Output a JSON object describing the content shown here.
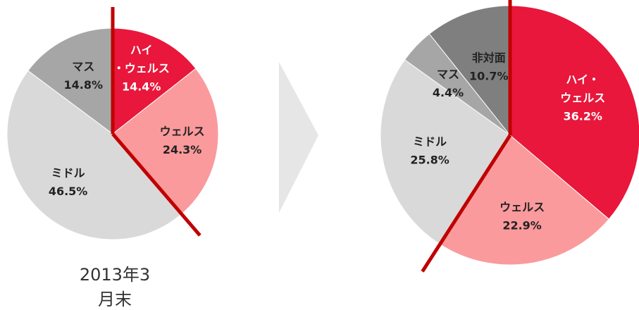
{
  "chart_data": [
    {
      "type": "pie",
      "caption": "2013年3月末",
      "slices": [
        {
          "name_lines": [
            "ハイ",
            "・ウェルス"
          ],
          "value": 14.4,
          "value_text": "14.4%",
          "color": "#e8173b",
          "label_color": "#ffffff"
        },
        {
          "name_lines": [
            "ウェルス"
          ],
          "value": 24.3,
          "value_text": "24.3%",
          "color": "#fa9a9c",
          "label_color": "#222222"
        },
        {
          "name_lines": [
            "ミドル"
          ],
          "value": 46.5,
          "value_text": "46.5%",
          "color": "#d9d9d9",
          "label_color": "#222222"
        },
        {
          "name_lines": [
            "マス"
          ],
          "value": 14.8,
          "value_text": "14.8%",
          "color": "#a6a6a6",
          "label_color": "#222222"
        }
      ]
    },
    {
      "type": "pie",
      "slices": [
        {
          "name_lines": [
            "ハイ・",
            "ウェルス"
          ],
          "value": 36.2,
          "value_text": "36.2%",
          "color": "#e8173b",
          "label_color": "#ffffff"
        },
        {
          "name_lines": [
            "ウェルス"
          ],
          "value": 22.9,
          "value_text": "22.9%",
          "color": "#fa9a9c",
          "label_color": "#222222"
        },
        {
          "name_lines": [
            "ミドル"
          ],
          "value": 25.8,
          "value_text": "25.8%",
          "color": "#d9d9d9",
          "label_color": "#222222"
        },
        {
          "name_lines": [
            "マス"
          ],
          "value": 4.4,
          "value_text": "4.4%",
          "color": "#a6a6a6",
          "label_color": "#222222"
        },
        {
          "name_lines": [
            "非対面"
          ],
          "value": 10.7,
          "value_text": "10.7%",
          "color": "#7f7f7f",
          "label_color": "#222222"
        }
      ]
    }
  ],
  "colors": {
    "divider_line": "#c00000",
    "arrow": "#e6e6e6"
  },
  "icons": {
    "transition_arrow": "chevron-right-icon"
  }
}
